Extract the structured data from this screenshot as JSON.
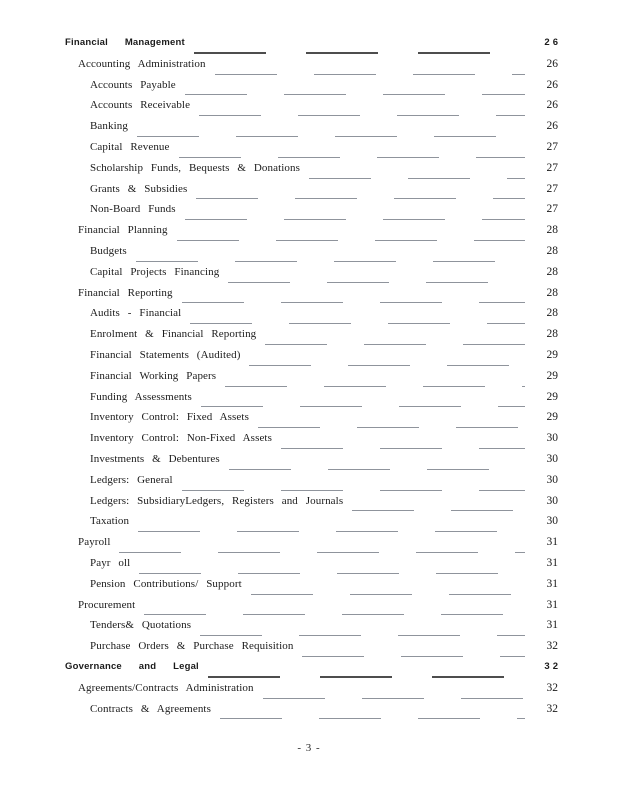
{
  "toc": {
    "entries": [
      {
        "title": "Financial Management",
        "page": "26",
        "level": 0,
        "head": true
      },
      {
        "title": "Accounting Administration",
        "page": "26",
        "level": 1,
        "head": false
      },
      {
        "title": "Accounts Payable",
        "page": "26",
        "level": 2,
        "head": false
      },
      {
        "title": "Accounts Receivable",
        "page": "26",
        "level": 2,
        "head": false
      },
      {
        "title": "Banking",
        "page": "26",
        "level": 2,
        "head": false
      },
      {
        "title": "Capital Revenue",
        "page": "27",
        "level": 2,
        "head": false
      },
      {
        "title": "Scholarship Funds, Bequests & Donations",
        "page": "27",
        "level": 2,
        "head": false
      },
      {
        "title": "Grants & Subsidies",
        "page": "27",
        "level": 2,
        "head": false
      },
      {
        "title": "Non-Board Funds",
        "page": "27",
        "level": 2,
        "head": false
      },
      {
        "title": "Financial Planning",
        "page": "28",
        "level": 1,
        "head": false
      },
      {
        "title": "Budgets",
        "page": "28",
        "level": 2,
        "head": false
      },
      {
        "title": "Capital Projects Financing",
        "page": "28",
        "level": 2,
        "head": false
      },
      {
        "title": "Financial Reporting",
        "page": "28",
        "level": 1,
        "head": false
      },
      {
        "title": "Audits - Financial",
        "page": "28",
        "level": 2,
        "head": false
      },
      {
        "title": "Enrolment & Financial Reporting",
        "page": "28",
        "level": 2,
        "head": false
      },
      {
        "title": "Financial Statements (Audited)",
        "page": "29",
        "level": 2,
        "head": false
      },
      {
        "title": "Financial Working Papers",
        "page": "29",
        "level": 2,
        "head": false
      },
      {
        "title": "Funding Assessments",
        "page": "29",
        "level": 2,
        "head": false
      },
      {
        "title": "Inventory Control: Fixed Assets",
        "page": "29",
        "level": 2,
        "head": false
      },
      {
        "title": "Inventory Control: Non-Fixed Assets",
        "page": "30",
        "level": 2,
        "head": false
      },
      {
        "title": "Investments & Debentures",
        "page": "30",
        "level": 2,
        "head": false
      },
      {
        "title": "Ledgers: General",
        "page": "30",
        "level": 2,
        "head": false
      },
      {
        "title": "Ledgers: SubsidiaryLedgers, Registers and Journals",
        "page": "30",
        "level": 2,
        "head": false
      },
      {
        "title": "Taxation",
        "page": "30",
        "level": 2,
        "head": false
      },
      {
        "title": "Payroll",
        "page": "31",
        "level": 1,
        "head": false
      },
      {
        "title": "Payr oll",
        "page": "31",
        "level": 2,
        "head": false
      },
      {
        "title": "Pension Contributions/ Support",
        "page": "31",
        "level": 2,
        "head": false
      },
      {
        "title": "Procurement",
        "page": "31",
        "level": 1,
        "head": false
      },
      {
        "title": "Tenders& Quotations",
        "page": "31",
        "level": 2,
        "head": false
      },
      {
        "title": "Purchase Orders & Purchase Requisition",
        "page": "32",
        "level": 2,
        "head": false
      },
      {
        "title": "Governance and Legal",
        "page": "32",
        "level": 0,
        "head": true
      },
      {
        "title": "Agreements/Contracts Administration",
        "page": "32",
        "level": 1,
        "head": false
      },
      {
        "title": "Contracts & Agreements",
        "page": "32",
        "level": 2,
        "head": false
      }
    ]
  },
  "footer": {
    "page_label": "- 3 -"
  },
  "colors": {
    "text": "#1b1b1b",
    "leader_line": "#8f949c",
    "leader_line_bold": "#4d4d4d",
    "background": "#ffffff"
  }
}
